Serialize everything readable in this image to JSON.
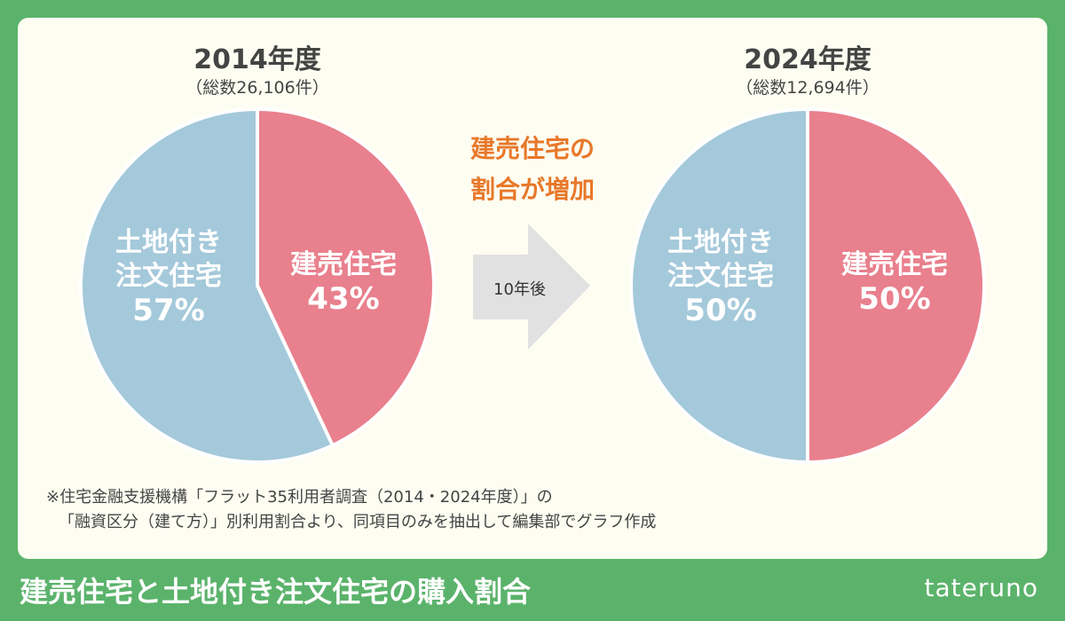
{
  "chart_data": [
    {
      "type": "pie",
      "title": "2014年度",
      "subtitle": "（総数26,106件）",
      "categories": [
        "建売住宅",
        "土地付き注文住宅"
      ],
      "values": [
        43,
        57
      ],
      "data_labels": [
        "43%",
        "57%"
      ],
      "colors": [
        "#e9808d",
        "#a4c9da"
      ]
    },
    {
      "type": "pie",
      "title": "2024年度",
      "subtitle": "（総数12,694件）",
      "categories": [
        "建売住宅",
        "土地付き注文住宅"
      ],
      "values": [
        50,
        50
      ],
      "data_labels": [
        "50%",
        "50%"
      ],
      "colors": [
        "#e9808d",
        "#a4c9da"
      ]
    }
  ],
  "labels": {
    "kenuri": "建売住宅",
    "chumon_line1": "土地付き",
    "chumon_line2": "注文住宅"
  },
  "arrow_label": "10年後",
  "message": {
    "line1": "建売住宅の",
    "line2": "割合が増加"
  },
  "note": {
    "line1": "※住宅金融支援機構「フラット35利用者調査（2014・2024年度）」の",
    "line2": "「融資区分（建て方）」別利用割合より、同項目のみを抽出して編集部でグラフ作成"
  },
  "footer_title": "建売住宅と土地付き注文住宅の購入割合",
  "brand": "tateruno",
  "colors": {
    "background": "#5bb36b",
    "card": "#fdfdf1",
    "accent": "#e8782a"
  }
}
